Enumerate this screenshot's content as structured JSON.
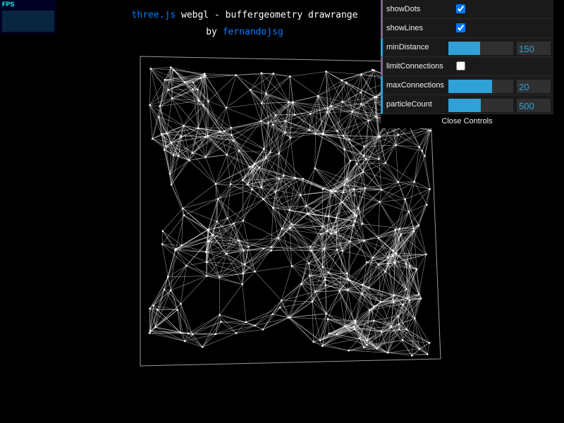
{
  "info": {
    "link": "three.js",
    "title": " webgl - buffergeometry drawrange",
    "by": "by ",
    "author": "fernandojsg"
  },
  "stats": {
    "label": "FPS"
  },
  "gui": {
    "controls": [
      {
        "label": "showDots",
        "type": "checkbox",
        "checked": true
      },
      {
        "label": "showLines",
        "type": "checkbox",
        "checked": true
      },
      {
        "label": "minDistance",
        "type": "number",
        "value": "150",
        "fill": 0.49
      },
      {
        "label": "limitConnections",
        "type": "checkbox",
        "checked": false
      },
      {
        "label": "maxConnections",
        "type": "number",
        "value": "20",
        "fill": 0.67
      },
      {
        "label": "particleCount",
        "type": "number",
        "value": "500",
        "fill": 0.5
      }
    ],
    "close_label": "Close Controls"
  },
  "colors": {
    "background": "#000000",
    "link": "#0080ff",
    "slider": "#2fa1d6",
    "checkbox_border": "#806787"
  }
}
